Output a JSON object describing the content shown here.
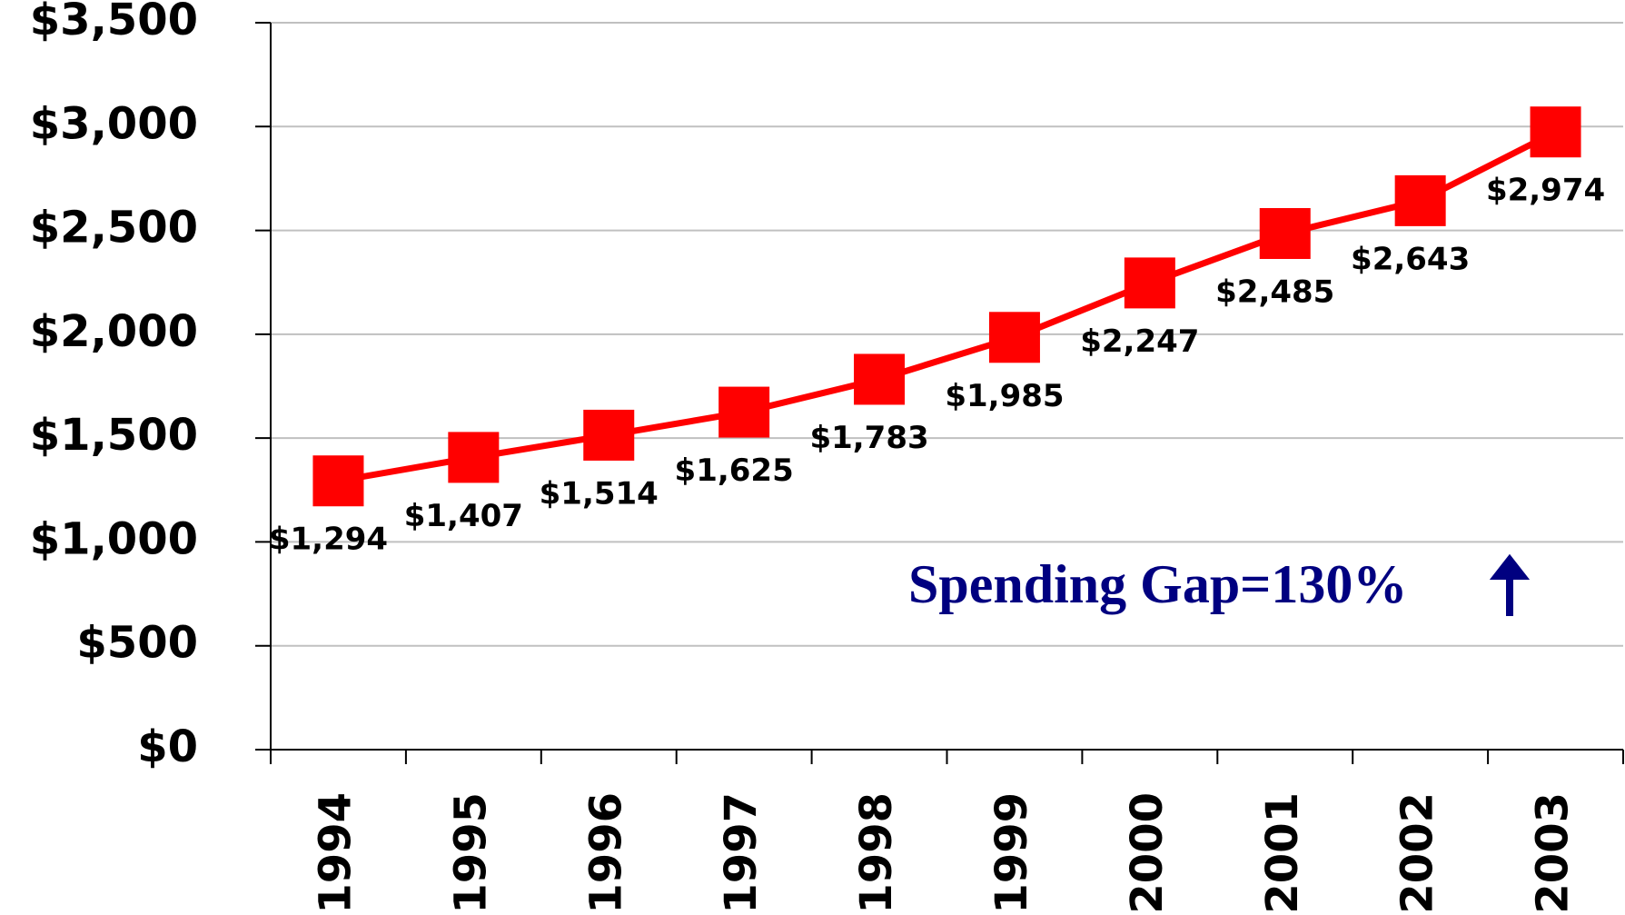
{
  "chart_data": {
    "type": "line",
    "categories": [
      "1994",
      "1995",
      "1996",
      "1997",
      "1998",
      "1999",
      "2000",
      "2001",
      "2002",
      "2003"
    ],
    "values": [
      1294,
      1407,
      1514,
      1625,
      1783,
      1985,
      2247,
      2485,
      2643,
      2974
    ],
    "value_labels": [
      "$1,294",
      "$1,407",
      "$1,514",
      "$1,625",
      "$1,783",
      "$1,985",
      "$2,247",
      "$2,485",
      "$2,643",
      "$2,974"
    ],
    "color": "#ff0000",
    "ylim": [
      0,
      3500
    ],
    "yticks": [
      {
        "value": 0,
        "label": "$0"
      },
      {
        "value": 500,
        "label": "$500"
      },
      {
        "value": 1000,
        "label": "$1,000"
      },
      {
        "value": 1500,
        "label": "$1,500"
      },
      {
        "value": 2000,
        "label": "$2,000"
      },
      {
        "value": 2500,
        "label": "$2,500"
      },
      {
        "value": 3000,
        "label": "$3,000"
      },
      {
        "value": 3500,
        "label": "$3,500"
      }
    ],
    "grid": true,
    "annotation": "Spending Gap=130%"
  }
}
